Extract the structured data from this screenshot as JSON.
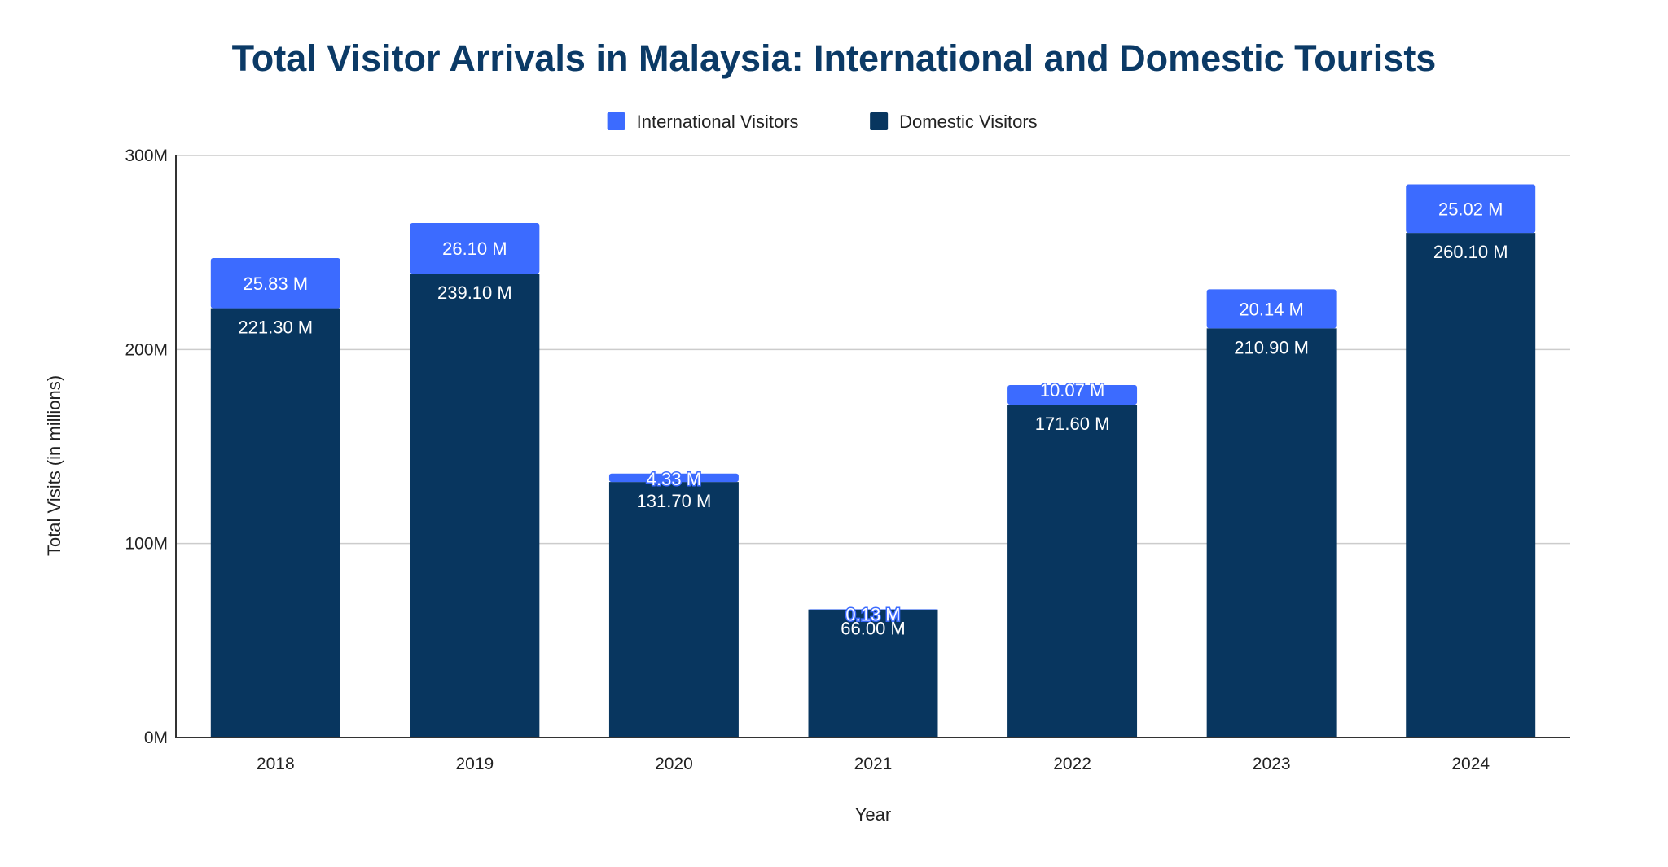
{
  "chart_data": {
    "type": "bar",
    "stacked": true,
    "title": "Total Visitor Arrivals in Malaysia: International and Domestic Tourists",
    "xlabel": "Year",
    "ylabel": "Total Visits (in millions)",
    "ylim": [
      0,
      300
    ],
    "yticks": [
      {
        "value": 0,
        "label": "0M"
      },
      {
        "value": 100,
        "label": "100M"
      },
      {
        "value": 200,
        "label": "200M"
      },
      {
        "value": 300,
        "label": "300M"
      }
    ],
    "grid": true,
    "legend_position": "top-center",
    "categories": [
      "2018",
      "2019",
      "2020",
      "2021",
      "2022",
      "2023",
      "2024"
    ],
    "series": [
      {
        "name": "Domestic Visitors",
        "color": "#08365f",
        "values": [
          221.3,
          239.1,
          131.7,
          66.0,
          171.6,
          210.9,
          260.1
        ],
        "labels": [
          "221.30 M",
          "239.10 M",
          "131.70 M",
          "66.00 M",
          "171.60 M",
          "210.90 M",
          "260.10 M"
        ]
      },
      {
        "name": "International Visitors",
        "color": "#3c6bff",
        "values": [
          25.83,
          26.1,
          4.33,
          0.13,
          10.07,
          20.14,
          25.02
        ],
        "labels": [
          "25.83 M",
          "26.10 M",
          "4.33 M",
          "0.13 M",
          "10.07 M",
          "20.14 M",
          "25.02 M"
        ]
      }
    ],
    "legend_order": [
      "International Visitors",
      "Domestic Visitors"
    ],
    "title_color": "#0b3a66"
  }
}
